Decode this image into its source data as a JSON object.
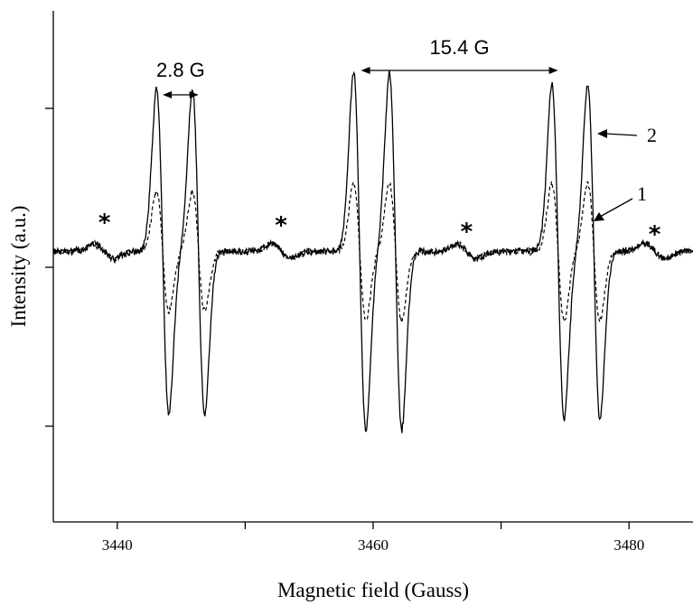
{
  "chart_data": {
    "type": "line",
    "title": "",
    "xlabel": "Magnetic field (Gauss)",
    "ylabel": "Intensity (a.u.)",
    "xlim": [
      3435,
      3485
    ],
    "ylim": [
      -1.55,
      1.65
    ],
    "x_ticks": [
      3440,
      3450,
      3460,
      3470,
      3480
    ],
    "x_tick_labels": [
      "3440",
      "",
      "3460",
      "",
      "3480"
    ],
    "y_ticks": [
      -1,
      0,
      1
    ],
    "y_tick_labels": [
      "",
      "",
      ""
    ],
    "grid": false,
    "lines": [
      {
        "center": 3444.95,
        "sep": 2.8,
        "amp_dashed": 0.38,
        "amp_solid": 1.02
      },
      {
        "center": 3460.35,
        "sep": 2.8,
        "amp_dashed": 0.43,
        "amp_solid": 1.12
      },
      {
        "center": 3475.85,
        "sep": 2.8,
        "amp_dashed": 0.43,
        "amp_solid": 1.05
      }
    ],
    "impurity_x": [
      3439,
      3452.8,
      3467.3,
      3482
    ],
    "baseline": 0.1,
    "series": [
      {
        "name": "1",
        "style": "dashed"
      },
      {
        "name": "2",
        "style": "solid"
      }
    ],
    "annotations": [
      {
        "text": "2.8 G",
        "x1": 3443.55,
        "x2": 3446.35
      },
      {
        "text": "15.4 G",
        "x1": 3459.05,
        "x2": 3474.45
      }
    ],
    "markers": [
      "*",
      "*",
      "*",
      "*"
    ]
  }
}
